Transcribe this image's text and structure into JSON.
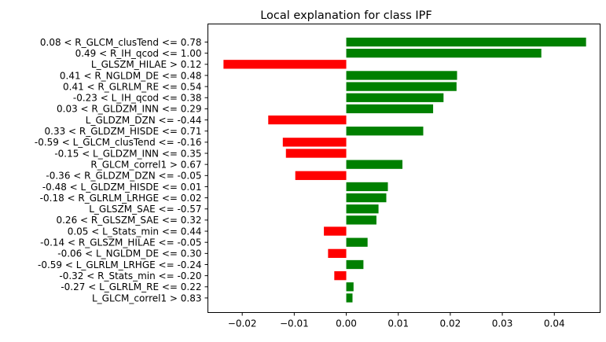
{
  "chart_data": {
    "type": "bar",
    "orientation": "horizontal",
    "title": "Local explanation for class  IPF",
    "xlabel": "",
    "ylabel": "",
    "xlim": [
      -0.0266,
      0.0488
    ],
    "xticks": [
      -0.02,
      -0.01,
      0.0,
      0.01,
      0.02,
      0.03,
      0.04
    ],
    "xtick_labels": [
      "−0.02",
      "−0.01",
      "0.00",
      "0.01",
      "0.02",
      "0.03",
      "0.04"
    ],
    "grid": false,
    "positive_color": "#008000",
    "negative_color": "#ff0000",
    "categories": [
      "0.08 < R_GLCM_clusTend <= 0.78",
      "0.49 < R_IH_qcod <= 1.00",
      "L_GLSZM_HILAE > 0.12",
      "0.41 < R_NGLDM_DE <= 0.48",
      "0.41 < R_GLRLM_RE <= 0.54",
      "-0.23 < L_IH_qcod <= 0.38",
      "0.03 < R_GLDZM_INN <= 0.29",
      "L_GLDZM_DZN <= -0.44",
      "0.33 < R_GLDZM_HISDE <= 0.71",
      "-0.59 < L_GLCM_clusTend <= -0.16",
      "-0.15 < L_GLDZM_INN <= 0.35",
      "R_GLCM_correl1 > 0.67",
      "-0.36 < R_GLDZM_DZN <= -0.05",
      "-0.48 < L_GLDZM_HISDE <= 0.01",
      "-0.18 < R_GLRLM_LRHGE <= 0.02",
      "L_GLSZM_SAE <= -0.57",
      "0.26 < R_GLSZM_SAE <= 0.32",
      "0.05 < L_Stats_min <= 0.44",
      "-0.14 < R_GLSZM_HILAE <= -0.05",
      "-0.06 < L_NGLDM_DE <= 0.30",
      "-0.59 < L_GLRLM_LRHGE <= -0.24",
      "-0.32 < R_Stats_min <= -0.20",
      "-0.27 < L_GLRLM_RE <= 0.22",
      "L_GLCM_correl1 > 0.83"
    ],
    "values": [
      0.0461,
      0.0375,
      -0.0236,
      0.0213,
      0.0212,
      0.0187,
      0.0167,
      -0.015,
      0.0148,
      -0.0122,
      -0.0116,
      0.0108,
      -0.0098,
      0.008,
      0.0077,
      0.0062,
      0.0058,
      -0.0043,
      0.0041,
      -0.0035,
      0.0033,
      -0.0023,
      0.0014,
      0.0012
    ]
  }
}
